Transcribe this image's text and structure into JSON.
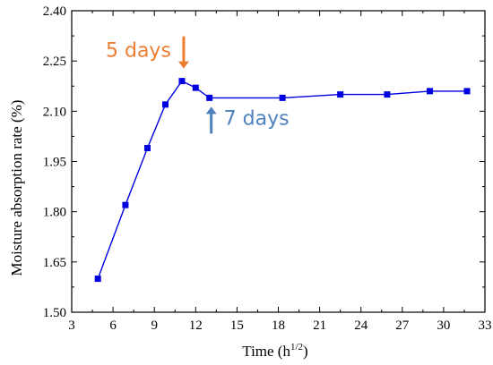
{
  "chart_data": {
    "type": "line",
    "xlabel_main": "Time (h",
    "xlabel_sup": "1/2",
    "xlabel_close": ")",
    "ylabel": "Moisture absorption rate (%)",
    "xlim": [
      3,
      33
    ],
    "ylim": [
      1.5,
      2.4
    ],
    "xticks": [
      3,
      6,
      9,
      12,
      15,
      18,
      21,
      24,
      27,
      30,
      33
    ],
    "yticks": [
      1.5,
      1.65,
      1.8,
      1.95,
      2.1,
      2.25,
      2.4
    ],
    "series": [
      {
        "color": "#0000e0",
        "points": [
          {
            "x": 4.9,
            "y": 1.6
          },
          {
            "x": 6.9,
            "y": 1.82
          },
          {
            "x": 8.5,
            "y": 1.99
          },
          {
            "x": 9.8,
            "y": 2.12
          },
          {
            "x": 11.0,
            "y": 2.19
          },
          {
            "x": 12.0,
            "y": 2.17
          },
          {
            "x": 13.0,
            "y": 2.14
          },
          {
            "x": 18.3,
            "y": 2.14
          },
          {
            "x": 22.5,
            "y": 2.15
          },
          {
            "x": 25.9,
            "y": 2.15
          },
          {
            "x": 29.0,
            "y": 2.16
          },
          {
            "x": 31.7,
            "y": 2.16
          }
        ]
      }
    ],
    "annotations": [
      {
        "text": "5 days",
        "color": "#ed7d31",
        "arrow": "down",
        "x": 11.0,
        "y": 2.19
      },
      {
        "text": "7 days",
        "color": "#4f81bd",
        "arrow": "up",
        "x": 13.0,
        "y": 2.14
      }
    ],
    "grid": false,
    "legend": "none"
  }
}
